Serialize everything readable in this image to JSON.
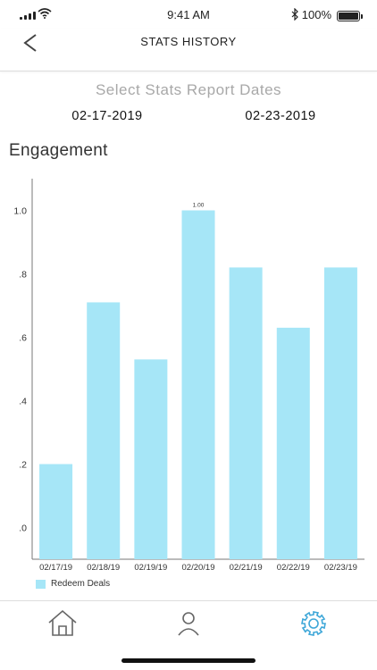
{
  "status_bar": {
    "time": "9:41 AM",
    "battery": "100%"
  },
  "nav": {
    "title": "STATS HISTORY"
  },
  "dates": {
    "title": "Select Stats Report Dates",
    "start": "02-17-2019",
    "end": "02-23-2019"
  },
  "section": {
    "title": "Engagement"
  },
  "chart_data": {
    "type": "bar",
    "title": "",
    "xlabel": "",
    "ylabel": "",
    "categories": [
      "02/17/19",
      "02/18/19",
      "02/19/19",
      "02/20/19",
      "02/21/19",
      "02/22/19",
      "02/23/19"
    ],
    "series": [
      {
        "name": "Redeem Deals",
        "values": [
          0.2,
          0.71,
          0.53,
          1.0,
          0.82,
          0.63,
          0.82
        ],
        "color": "#a6e6f7"
      }
    ],
    "ylim": [
      -0.1,
      1.1
    ],
    "yticks": [
      {
        "value": 0.0,
        "label": ".0"
      },
      {
        "value": 0.2,
        "label": ".2"
      },
      {
        "value": 0.4,
        "label": ".4"
      },
      {
        "value": 0.6,
        "label": ".6"
      },
      {
        "value": 0.8,
        "label": ".8"
      },
      {
        "value": 1.0,
        "label": "1.0"
      }
    ],
    "data_labels": [
      {
        "index": 3,
        "text": "1.00"
      }
    ],
    "grid": false,
    "legend": "bottom-left"
  },
  "legend": {
    "label": "Redeem Deals"
  },
  "icons": {
    "back": "chevron-left-icon",
    "home": "home-icon",
    "profile": "user-icon",
    "settings": "gear-icon"
  },
  "colors": {
    "bar": "#a6e6f7",
    "active_tab": "#3ea7d8",
    "inactive_tab": "#666666"
  }
}
